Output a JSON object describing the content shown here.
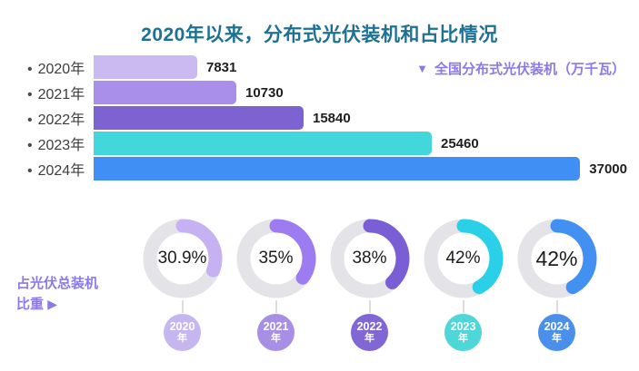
{
  "title": "2020年以来，分布式光伏装机和占比情况",
  "legend": {
    "marker": "▼",
    "label": "全国分布式光伏装机（万千瓦）"
  },
  "side_label": {
    "text": "占光伏总装机比重",
    "arrow": "▶"
  },
  "colors": {
    "title": "#1d7193",
    "accent": "#8a7ae9",
    "track": "#e4e3e8",
    "text_dark": "#1f1f1f",
    "text_label": "#3d3d3d"
  },
  "chart_data": [
    {
      "type": "bar",
      "orientation": "horizontal",
      "series_name": "全国分布式光伏装机（万千瓦）",
      "categories": [
        "2020年",
        "2021年",
        "2022年",
        "2023年",
        "2024年"
      ],
      "values": [
        7831,
        10730,
        15840,
        25460,
        37000
      ],
      "value_labels": [
        "7831",
        "10730",
        "15840",
        "25460",
        "37000"
      ],
      "xlim": [
        0,
        37000
      ],
      "grid": false,
      "legend_position": "top-right",
      "bar_colors": [
        "#cbbaf2",
        "#a98fe9",
        "#7d63d2",
        "#41d7db",
        "#3f8ff5"
      ]
    },
    {
      "type": "donut",
      "series_name": "占光伏总装机比重",
      "categories": [
        "2020年",
        "2021年",
        "2022年",
        "2023年",
        "2024年"
      ],
      "values_pct": [
        30.9,
        35,
        38,
        42,
        42
      ],
      "labels": [
        "30.9%",
        "35%",
        "38%",
        "42%",
        "42%"
      ],
      "emphasis": [
        false,
        false,
        false,
        false,
        true
      ],
      "arc_colors": [
        "#c6b2f3",
        "#9c7cf0",
        "#7a5ed6",
        "#29d0e8",
        "#4291f2"
      ],
      "badge_colors": [
        "#c6b6ef",
        "#a78fe6",
        "#8067d4",
        "#4fd6d9",
        "#4a90ea"
      ],
      "badge_labels": [
        [
          "2020",
          "年"
        ],
        [
          "2021",
          "年"
        ],
        [
          "2022",
          "年"
        ],
        [
          "2023",
          "年"
        ],
        [
          "2024",
          "年"
        ]
      ]
    }
  ]
}
